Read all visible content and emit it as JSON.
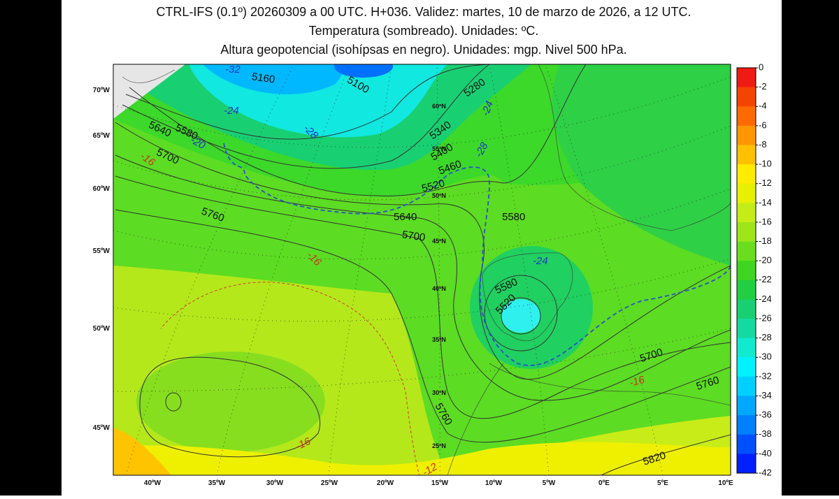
{
  "header": {
    "lines": [
      "CTRL-IFS (0.1º) 20260309 a 00 UTC. H+036. Validez: martes, 10 de marzo de 2026, a 12 UTC.",
      "Temperatura (sombreado). Unidades: ºC.",
      "Altura geopotencial (isohípsas en negro). Unidades: mgp. Nivel 500 hPa."
    ]
  },
  "map": {
    "left_labels": [
      "70ºW",
      "65ºW",
      "60ºW",
      "55ºW",
      "50ºW",
      "45ºW"
    ],
    "bottom_labels": [
      "40ºW",
      "35ºW",
      "30ºW",
      "25ºW",
      "20ºW",
      "15ºW",
      "10ºW",
      "5ºW",
      "0ºE",
      "5ºE",
      "10ºE"
    ],
    "lat_labels": [
      "60ºN",
      "55ºN",
      "50ºN",
      "45ºN",
      "40ºN",
      "35ºN",
      "30ºN",
      "25ºN"
    ],
    "height_labels": [
      "5160",
      "5100",
      "5280",
      "5340",
      "5400",
      "5460",
      "5520",
      "5640",
      "5700",
      "5580",
      "5760",
      "5700",
      "5640",
      "5580",
      "5580",
      "5520",
      "5700",
      "5760",
      "5820",
      "5760"
    ],
    "cold_labels": [
      "-32",
      "-24",
      "-28",
      "-24",
      "-28",
      "-24",
      "-20"
    ],
    "warm_labels": [
      "-16",
      "-16",
      "-16",
      "-16",
      "-12"
    ]
  },
  "colorbar": {
    "levels": [
      0,
      -2,
      -4,
      -6,
      -8,
      -10,
      -12,
      -14,
      -16,
      -18,
      -20,
      -22,
      -24,
      -26,
      -28,
      -30,
      -32,
      -34,
      -36,
      -38,
      -40,
      -42
    ],
    "colors": [
      "#f01a14",
      "#f54400",
      "#ff6a00",
      "#ff9600",
      "#ffc000",
      "#ffec00",
      "#e6f000",
      "#c4ec18",
      "#9ee61a",
      "#6ade1e",
      "#3ed620",
      "#22cf42",
      "#18d072",
      "#14daa2",
      "#10eacf",
      "#00f2ff",
      "#00d0ff",
      "#00a8ff",
      "#0080ff",
      "#0050ff",
      "#0020ff"
    ]
  }
}
